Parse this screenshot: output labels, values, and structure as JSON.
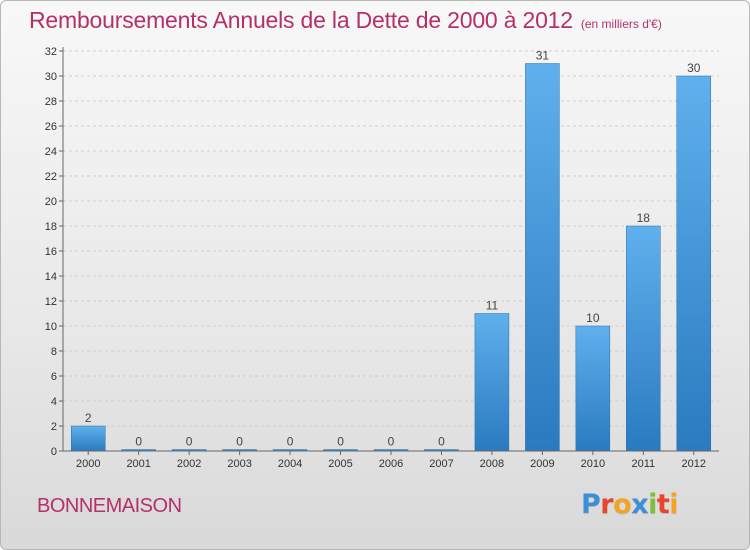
{
  "header": {
    "title": "Remboursements Annuels de la Dette de 2000 à 2012",
    "unit": "(en milliers d'€)"
  },
  "footer": {
    "commune": "BONNEMAISON"
  },
  "logo": {
    "text": "Proxiti",
    "letters": [
      {
        "char": "P",
        "color": "#3a8fd6"
      },
      {
        "char": "r",
        "color": "#e8452c"
      },
      {
        "char": "o",
        "color": "#f2a422"
      },
      {
        "char": "x",
        "color": "#3a8fd6"
      },
      {
        "char": "i",
        "color": "#7cbf3a"
      },
      {
        "char": "t",
        "color": "#e8452c"
      },
      {
        "char": "i",
        "color": "#f2a422"
      }
    ]
  },
  "colors": {
    "accent": "#b5306a",
    "bar_light": "#5fb0ec",
    "bar_dark": "#2a7ac0",
    "axis_text": "#333333",
    "grid": "#cfcfcf"
  },
  "chart_data": {
    "type": "bar",
    "title": "Remboursements Annuels de la Dette de 2000 à 2012",
    "subtitle": "(en milliers d'€)",
    "categories": [
      "2000",
      "2001",
      "2002",
      "2003",
      "2004",
      "2005",
      "2006",
      "2007",
      "2008",
      "2009",
      "2010",
      "2011",
      "2012"
    ],
    "values": [
      2,
      0,
      0,
      0,
      0,
      0,
      0,
      0,
      11,
      31,
      10,
      18,
      30
    ],
    "ylim": [
      0,
      32
    ],
    "yticks": [
      0,
      2,
      4,
      6,
      8,
      10,
      12,
      14,
      16,
      18,
      20,
      22,
      24,
      26,
      28,
      30,
      32
    ],
    "grid": true
  }
}
